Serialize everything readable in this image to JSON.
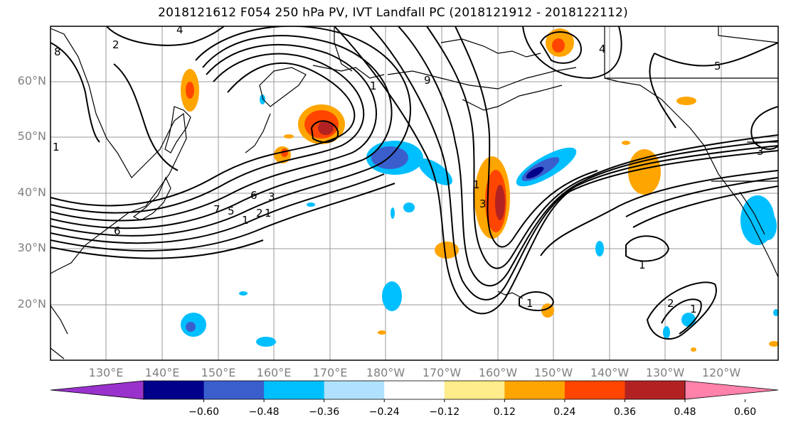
{
  "title": "2018121612 F054 250 hPa PV, IVT Landfall PC (2018121912 - 2018122112)",
  "map": {
    "lat_labels": [
      "60°N",
      "50°N",
      "40°N",
      "30°N",
      "20°N"
    ],
    "lon_labels": [
      "130°E",
      "140°E",
      "150°E",
      "160°E",
      "170°E",
      "180°W",
      "170°W",
      "160°W",
      "150°W",
      "140°W",
      "130°W",
      "120°W"
    ],
    "contour_labels": [
      "4",
      "8",
      "1",
      "2",
      "7",
      "5",
      "1",
      "6",
      "3",
      "2",
      "1",
      "1",
      "9",
      "1",
      "3",
      "5",
      "1",
      "2",
      "1",
      "1",
      "3",
      "4",
      "6"
    ]
  },
  "colorbar": {
    "tick_labels": [
      "−0.60",
      "−0.48",
      "−0.36",
      "−0.24",
      "−0.12",
      "0.12",
      "0.24",
      "0.36",
      "0.48",
      "0.60"
    ],
    "colors": [
      "#9932cc",
      "#00008b",
      "#3a5fcd",
      "#00bfff",
      "#b0e2ff",
      "#ffffff",
      "#ffec8b",
      "#ffa500",
      "#ff4500",
      "#b22222",
      "#ff82ab"
    ]
  }
}
